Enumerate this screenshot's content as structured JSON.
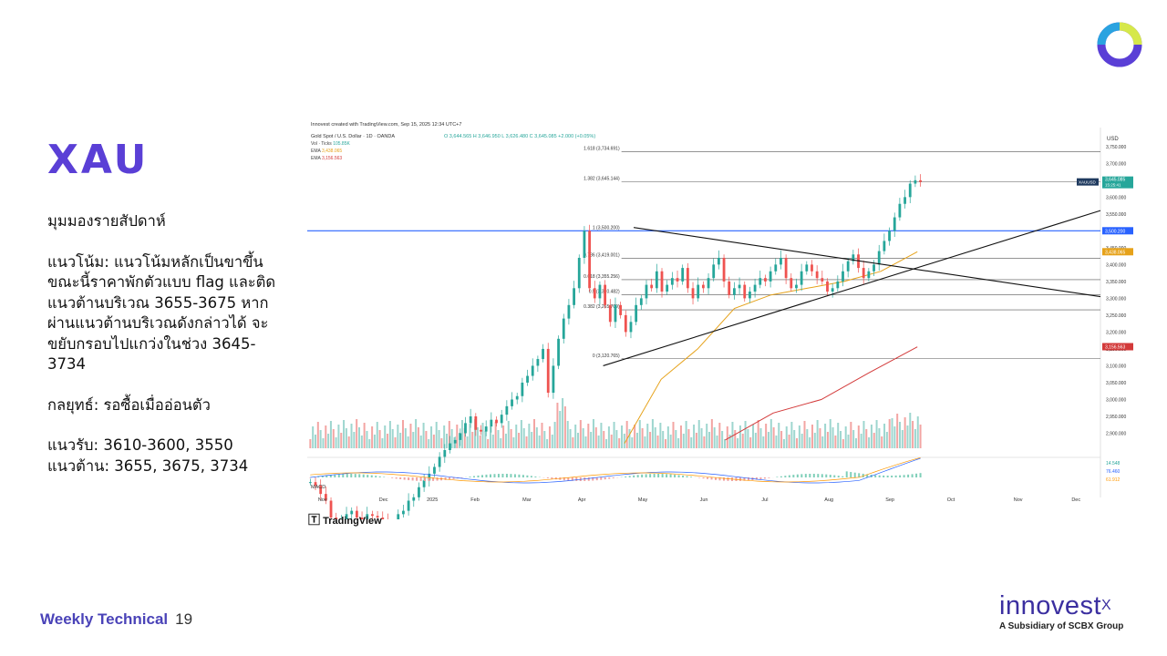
{
  "slide": {
    "title": "XAU",
    "heading": "มุมมองรายสัปดาห์",
    "trend": "แนวโน้ม: แนวโน้มหลักเป็นขาขึ้น ขณะนี้ราคาพักตัวแบบ flag และติดแนวต้านบริเวณ 3655-3675 หากผ่านแนวต้านบริเวณดังกล่าวได้ จะขยับกรอบไปแกว่งในช่วง 3645-3734",
    "strategy": "กลยุทธ์: รอซื้อเมื่ออ่อนตัว",
    "support": "แนวรับ: 3610-3600, 3550",
    "resistance": "แนวต้าน: 3655, 3675, 3734",
    "footer_label": "Weekly Technical",
    "page_number": "19",
    "brand_name": "innovest",
    "brand_mark": "X",
    "brand_subtitle": "A Subsidiary of SCBX Group",
    "tv_brand": "TradingView",
    "colors": {
      "accent": "#5a3fd6",
      "brand": "#3b2fa0",
      "up": "#26a69a",
      "down": "#ef5350",
      "ema_short": "#e6a21a",
      "ema_long": "#d33a3a"
    }
  },
  "chart_data": {
    "type": "candlestick",
    "title": "Gold Spot / U.S. Dollar · 1D · OANDA",
    "header_line": "Innovest created with TradingView.com, Sep 15, 2025 12:34 UTC+7",
    "ohlc_text": "O 3,644.565  H 3,646.950  L 3,626.480  C 3,645.085  +2.000 (+0.05%)",
    "symbol": "XAUUSD",
    "currency": "USD",
    "last_price": "3,645.085",
    "countdown": "15:25:41",
    "indicators": [
      {
        "name": "Vol · Ticks",
        "value": "105.85K"
      },
      {
        "name": "EMA",
        "value": "3,438.065",
        "color": "#e6a21a"
      },
      {
        "name": "EMA",
        "value": "3,156.563",
        "color": "#d33a3a"
      }
    ],
    "price_axis": [
      "3,750.000",
      "3,700.000",
      "3,650.000",
      "3,600.000",
      "3,550.000",
      "3,500.000",
      "3,450.000",
      "3,400.000",
      "3,350.000",
      "3,300.000",
      "3,250.000",
      "3,200.000",
      "3,150.000",
      "3,100.000",
      "3,050.000",
      "3,000.000",
      "2,950.000",
      "2,900.000"
    ],
    "ylim": [
      2850,
      3790
    ],
    "x_labels": [
      "Nov",
      "Dec",
      "2025",
      "Feb",
      "Mar",
      "Apr",
      "May",
      "Jun",
      "Jul",
      "Aug",
      "Sep",
      "Oct",
      "Nov",
      "Dec"
    ],
    "x_positions": [
      0.5,
      2.5,
      4.1,
      5.5,
      7.2,
      9.0,
      11.0,
      13.0,
      15.0,
      17.1,
      19.1,
      21.1,
      23.3,
      25.2
    ],
    "fib_levels": [
      {
        "label": "1.618 (3,734.691)",
        "value": 3734.691
      },
      {
        "label": "1.382 (3,645.144)",
        "value": 3645.144
      },
      {
        "label": "1 (3,500.200)",
        "value": 3500.2
      },
      {
        "label": "0.786 (3,419.001)",
        "value": 3419.001
      },
      {
        "label": "0.618 (3,355.256)",
        "value": 3355.256
      },
      {
        "label": "0.5 (3,310.482)",
        "value": 3310.482
      },
      {
        "label": "0.382 (3,265.709)",
        "value": 3265.709
      },
      {
        "label": "0 (3,120.765)",
        "value": 3120.765
      }
    ],
    "price_badges": [
      {
        "text": "3,500.200",
        "value": 3500.2,
        "color": "#2962ff"
      },
      {
        "text": "3,438.065",
        "value": 3438.065,
        "color": "#e6a21a"
      },
      {
        "text": "3,156.563",
        "value": 3156.563,
        "color": "#d33a3a"
      }
    ],
    "macd": {
      "label": "MACD",
      "values": [
        "14.548",
        "76.460",
        "61.912"
      ]
    },
    "close_series": [
      2755,
      2745,
      2720,
      2700,
      2650,
      2620,
      2640,
      2660,
      2670,
      2650,
      2630,
      2660,
      2655,
      2650,
      2640,
      2625,
      2630,
      2660,
      2670,
      2700,
      2710,
      2740,
      2760,
      2780,
      2800,
      2830,
      2850,
      2870,
      2880,
      2900,
      2930,
      2950,
      2910,
      2905,
      2920,
      2940,
      2930,
      2955,
      2980,
      3000,
      3010,
      3050,
      3070,
      3100,
      3120,
      3150,
      3020,
      3100,
      3180,
      3240,
      3280,
      3330,
      3420,
      3500,
      3330,
      3300,
      3340,
      3280,
      3230,
      3280,
      3250,
      3200,
      3230,
      3280,
      3300,
      3340,
      3330,
      3380,
      3320,
      3340,
      3360,
      3350,
      3390,
      3330,
      3300,
      3340,
      3330,
      3360,
      3400,
      3420,
      3350,
      3310,
      3330,
      3340,
      3300,
      3320,
      3340,
      3360,
      3350,
      3380,
      3400,
      3420,
      3360,
      3330,
      3340,
      3380,
      3400,
      3380,
      3360,
      3350,
      3320,
      3330,
      3350,
      3380,
      3410,
      3430,
      3390,
      3360,
      3380,
      3400,
      3440,
      3470,
      3500,
      3540,
      3580,
      3600,
      3640,
      3650,
      3645
    ],
    "ema_short": [
      2870,
      3060,
      3150,
      3270,
      3310,
      3330,
      3350,
      3380,
      3438
    ],
    "ema_long": [
      2880,
      2960,
      3000,
      3080,
      3156
    ]
  }
}
